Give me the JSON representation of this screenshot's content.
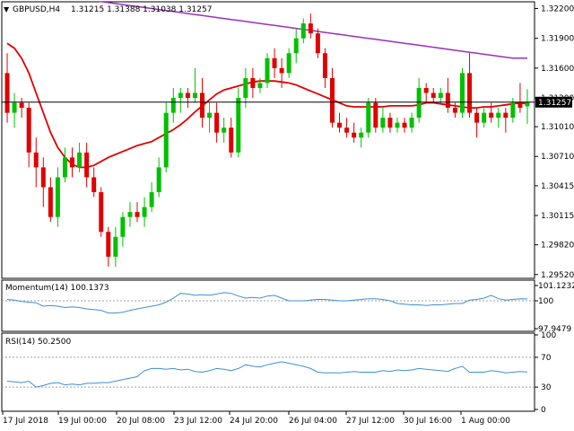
{
  "header": {
    "symbol_label": "GBPUSD,H4",
    "ohlc_text": "1.31215 1.31388 1.31038 1.31257"
  },
  "chart_data": [
    {
      "type": "candlestick",
      "name": "GBPUSD,H4",
      "ohlc": [
        1.31215,
        1.31388,
        1.31038,
        1.31257
      ],
      "y_ticks": [
        "1.32200",
        "1.31900",
        "1.31600",
        "1.31300",
        "1.31010",
        "1.30710",
        "1.30415",
        "1.30115",
        "1.29820",
        "1.29520"
      ],
      "ylim": [
        1.295,
        1.3225
      ],
      "current_price": 1.31257,
      "current_price_label": "1.31257",
      "candles": [
        [
          1.3155,
          1.3175,
          1.3105,
          1.3115
        ],
        [
          1.3115,
          1.3135,
          1.31,
          1.3125
        ],
        [
          1.3125,
          1.313,
          1.311,
          1.312
        ],
        [
          1.312,
          1.3125,
          1.306,
          1.3075
        ],
        [
          1.3075,
          1.309,
          1.304,
          1.306
        ],
        [
          1.306,
          1.307,
          1.302,
          1.304
        ],
        [
          1.304,
          1.305,
          1.3005,
          1.301
        ],
        [
          1.301,
          1.306,
          1.3,
          1.305
        ],
        [
          1.305,
          1.308,
          1.3045,
          1.307
        ],
        [
          1.307,
          1.308,
          1.305,
          1.306
        ],
        [
          1.306,
          1.3085,
          1.3055,
          1.3075
        ],
        [
          1.3075,
          1.3085,
          1.304,
          1.305
        ],
        [
          1.305,
          1.306,
          1.303,
          1.3035
        ],
        [
          1.3035,
          1.304,
          1.299,
          1.2995
        ],
        [
          1.2995,
          1.3,
          1.296,
          1.297
        ],
        [
          1.297,
          1.3,
          1.296,
          1.299
        ],
        [
          1.299,
          1.3015,
          1.298,
          1.301
        ],
        [
          1.301,
          1.3025,
          1.3,
          1.3015
        ],
        [
          1.3015,
          1.3025,
          1.3005,
          1.301
        ],
        [
          1.301,
          1.303,
          1.3,
          1.302
        ],
        [
          1.302,
          1.3045,
          1.3015,
          1.3035
        ],
        [
          1.3035,
          1.307,
          1.303,
          1.306
        ],
        [
          1.306,
          1.3125,
          1.3055,
          1.3115
        ],
        [
          1.3115,
          1.314,
          1.3105,
          1.313
        ],
        [
          1.313,
          1.314,
          1.3115,
          1.3135
        ],
        [
          1.3135,
          1.314,
          1.312,
          1.313
        ],
        [
          1.313,
          1.316,
          1.3125,
          1.3135
        ],
        [
          1.3135,
          1.315,
          1.31,
          1.311
        ],
        [
          1.311,
          1.3125,
          1.3095,
          1.3115
        ],
        [
          1.3115,
          1.3125,
          1.3085,
          1.3095
        ],
        [
          1.3095,
          1.311,
          1.3085,
          1.31
        ],
        [
          1.31,
          1.311,
          1.307,
          1.3075
        ],
        [
          1.3075,
          1.314,
          1.307,
          1.313
        ],
        [
          1.313,
          1.316,
          1.312,
          1.315
        ],
        [
          1.315,
          1.316,
          1.313,
          1.314
        ],
        [
          1.314,
          1.315,
          1.3135,
          1.3145
        ],
        [
          1.3145,
          1.3175,
          1.314,
          1.317
        ],
        [
          1.317,
          1.318,
          1.315,
          1.316
        ],
        [
          1.316,
          1.317,
          1.314,
          1.3155
        ],
        [
          1.3155,
          1.318,
          1.315,
          1.3175
        ],
        [
          1.3175,
          1.32,
          1.3165,
          1.319
        ],
        [
          1.319,
          1.321,
          1.3185,
          1.3205
        ],
        [
          1.3205,
          1.3215,
          1.319,
          1.3195
        ],
        [
          1.3195,
          1.32,
          1.317,
          1.3175
        ],
        [
          1.3175,
          1.318,
          1.314,
          1.315
        ],
        [
          1.315,
          1.316,
          1.31,
          1.3105
        ],
        [
          1.3105,
          1.3115,
          1.3095,
          1.31
        ],
        [
          1.31,
          1.311,
          1.309,
          1.3095
        ],
        [
          1.3095,
          1.3105,
          1.3085,
          1.309
        ],
        [
          1.309,
          1.31,
          1.308,
          1.3095
        ],
        [
          1.3095,
          1.313,
          1.309,
          1.3125
        ],
        [
          1.3125,
          1.313,
          1.3095,
          1.31
        ],
        [
          1.31,
          1.312,
          1.3095,
          1.311
        ],
        [
          1.311,
          1.3115,
          1.3095,
          1.31
        ],
        [
          1.31,
          1.311,
          1.3095,
          1.3105
        ],
        [
          1.3105,
          1.311,
          1.3095,
          1.31
        ],
        [
          1.31,
          1.3115,
          1.3095,
          1.311
        ],
        [
          1.311,
          1.315,
          1.3105,
          1.314
        ],
        [
          1.314,
          1.3145,
          1.3125,
          1.3135
        ],
        [
          1.3135,
          1.314,
          1.3125,
          1.313
        ],
        [
          1.313,
          1.314,
          1.3125,
          1.3135
        ],
        [
          1.3135,
          1.315,
          1.3115,
          1.312
        ],
        [
          1.312,
          1.3125,
          1.311,
          1.3115
        ],
        [
          1.3115,
          1.316,
          1.311,
          1.3155
        ],
        [
          1.3155,
          1.3175,
          1.311,
          1.3115
        ],
        [
          1.3115,
          1.312,
          1.309,
          1.3105
        ],
        [
          1.3105,
          1.312,
          1.31,
          1.3115
        ],
        [
          1.3115,
          1.3125,
          1.3105,
          1.311
        ],
        [
          1.311,
          1.312,
          1.31,
          1.3115
        ],
        [
          1.3115,
          1.312,
          1.3095,
          1.311
        ],
        [
          1.311,
          1.313,
          1.3105,
          1.3125
        ],
        [
          1.3125,
          1.3145,
          1.3115,
          1.312
        ],
        [
          1.31215,
          1.31388,
          1.31038,
          1.31257
        ]
      ],
      "ma_red": [
        1.3185,
        1.318,
        1.317,
        1.3155,
        1.3135,
        1.3115,
        1.3095,
        1.308,
        1.307,
        1.3063,
        1.306,
        1.306,
        1.3062,
        1.3066,
        1.307,
        1.3073,
        1.3076,
        1.3079,
        1.3082,
        1.3084,
        1.3086,
        1.309,
        1.3094,
        1.3098,
        1.3103,
        1.3109,
        1.3116,
        1.3122,
        1.3128,
        1.3134,
        1.3138,
        1.314,
        1.3142,
        1.3144,
        1.3146,
        1.3147,
        1.3147,
        1.3147,
        1.3146,
        1.3145,
        1.3143,
        1.314,
        1.3137,
        1.3134,
        1.3131,
        1.3128,
        1.3125,
        1.3122,
        1.3121,
        1.3121,
        1.3121,
        1.3121,
        1.3121,
        1.3122,
        1.3122,
        1.3122,
        1.3122,
        1.3123,
        1.3125,
        1.3125,
        1.3124,
        1.3123,
        1.3122,
        1.3121,
        1.312,
        1.312,
        1.3121,
        1.3121,
        1.3122,
        1.3123,
        1.3124,
        1.3125,
        1.3124
      ],
      "ma_purple": [
        1.324,
        1.3239,
        1.3238,
        1.3237,
        1.3236,
        1.3235,
        1.3234,
        1.3233,
        1.3232,
        1.3231,
        1.323,
        1.3229,
        1.3228,
        1.3227,
        1.3226,
        1.3225,
        1.3224,
        1.3223,
        1.3222,
        1.3221,
        1.322,
        1.3219,
        1.3218,
        1.3217,
        1.3216,
        1.3215,
        1.3214,
        1.3213,
        1.3212,
        1.3211,
        1.321,
        1.3209,
        1.3208,
        1.3207,
        1.3206,
        1.3205,
        1.3204,
        1.3203,
        1.3202,
        1.3201,
        1.32,
        1.3199,
        1.3198,
        1.3197,
        1.3196,
        1.3195,
        1.3194,
        1.3193,
        1.3192,
        1.3191,
        1.319,
        1.3189,
        1.3188,
        1.3187,
        1.3186,
        1.3185,
        1.3184,
        1.3183,
        1.3182,
        1.3181,
        1.318,
        1.3179,
        1.3178,
        1.3177,
        1.3176,
        1.3175,
        1.3174,
        1.3173,
        1.3172,
        1.3171,
        1.317,
        1.317,
        1.317
      ]
    },
    {
      "type": "line",
      "name": "Momentum(14)",
      "label": "Momentum(14) 100.1373",
      "y_ticks": [
        "101.1232",
        "100",
        "97.9479"
      ],
      "ylim": [
        97.9479,
        101.1232
      ],
      "values": [
        100.1,
        100.05,
        99.95,
        99.9,
        99.85,
        99.6,
        99.65,
        99.6,
        99.5,
        99.55,
        99.5,
        99.4,
        99.35,
        99.3,
        99.1,
        99.1,
        99.15,
        99.3,
        99.4,
        99.5,
        99.6,
        99.7,
        99.9,
        100.2,
        100.55,
        100.5,
        100.4,
        100.45,
        100.4,
        100.5,
        100.6,
        100.55,
        100.35,
        100.2,
        100.25,
        100.2,
        100.35,
        100.4,
        100.2,
        100.0,
        100.0,
        100.0,
        100.05,
        100.1,
        100.1,
        100.05,
        100.0,
        100.0,
        100.05,
        100.1,
        100.15,
        100.15,
        100.1,
        100.0,
        99.8,
        99.75,
        99.7,
        99.7,
        99.65,
        99.7,
        99.7,
        99.75,
        99.8,
        99.8,
        100.05,
        100.1,
        100.2,
        100.4,
        100.15,
        100.05,
        100.1,
        100.15,
        100.1373
      ],
      "reference_line": 100
    },
    {
      "type": "line",
      "name": "RSI(14)",
      "label": "RSI(14) 50.2500",
      "y_ticks": [
        "100",
        "70",
        "30",
        "0"
      ],
      "ylim": [
        0,
        100
      ],
      "values": [
        38,
        37,
        36,
        38,
        30,
        32,
        35,
        36,
        33,
        34,
        33,
        35,
        35,
        36,
        36,
        38,
        40,
        42,
        44,
        52,
        55,
        55,
        54,
        55,
        53,
        54,
        51,
        50,
        52,
        55,
        54,
        52,
        55,
        60,
        58,
        57,
        60,
        62,
        64,
        62,
        60,
        58,
        55,
        50,
        49,
        49,
        49,
        50,
        51,
        50,
        50,
        50,
        52,
        51,
        53,
        52,
        53,
        55,
        54,
        53,
        52,
        51,
        55,
        58,
        50,
        50,
        50,
        52,
        51,
        49,
        50,
        51,
        50.25
      ],
      "levels": [
        70,
        30
      ]
    }
  ],
  "x_axis": {
    "labels": [
      "17 Jul 2018",
      "19 Jul 00:00",
      "20 Jul 08:00",
      "23 Jul 12:00",
      "24 Jul 20:00",
      "26 Jul 04:00",
      "27 Jul 12:00",
      "30 Jul 16:00",
      "1 Aug 00:00"
    ]
  },
  "colors": {
    "bull": "#00c000",
    "bear": "#e00000",
    "ma_red": "#e00000",
    "ma_purple": "#9a30c0",
    "indicator_line": "#3d8fd6",
    "level_line": "#a0a0a0",
    "frame": "#000000"
  }
}
